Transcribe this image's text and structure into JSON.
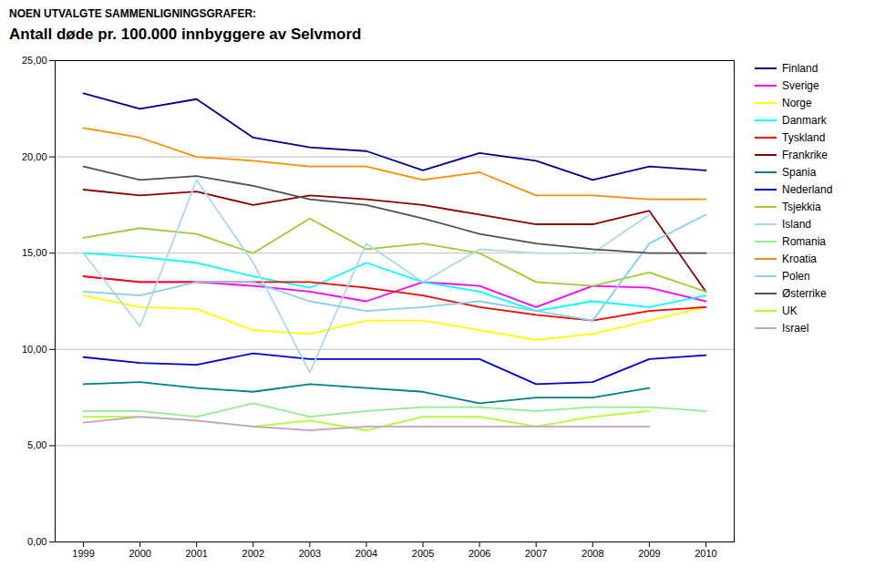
{
  "chart_data": {
    "type": "line",
    "title": "Antall døde pr. 100.000 innbyggere av Selvmord",
    "subtitle": "NOEN UTVALGTE SAMMENLIGNINGSGRAFER:",
    "x": [
      1999,
      2000,
      2001,
      2002,
      2003,
      2004,
      2005,
      2006,
      2007,
      2008,
      2009,
      2010
    ],
    "series": [
      {
        "name": "Finland",
        "color": "#00008B",
        "values": [
          23.3,
          22.5,
          23.0,
          21.0,
          20.5,
          20.3,
          19.3,
          20.2,
          19.8,
          18.8,
          19.5,
          19.3
        ]
      },
      {
        "name": "Sverige",
        "color": "#FF00FF",
        "values": [
          13.8,
          13.5,
          13.5,
          13.3,
          13.0,
          12.5,
          13.5,
          13.3,
          12.2,
          13.3,
          13.2,
          12.5
        ]
      },
      {
        "name": "Norge",
        "color": "#FFFF00",
        "values": [
          12.8,
          12.2,
          12.1,
          11.0,
          10.8,
          11.5,
          11.5,
          11.0,
          10.5,
          10.8,
          11.5,
          12.2
        ]
      },
      {
        "name": "Danmark",
        "color": "#00FFFF",
        "values": [
          15.0,
          14.8,
          14.5,
          13.8,
          13.2,
          14.5,
          13.5,
          13.0,
          12.0,
          12.5,
          12.2,
          12.8
        ]
      },
      {
        "name": "Tyskland",
        "color": "#FF0000",
        "values": [
          13.8,
          13.5,
          13.5,
          13.5,
          13.5,
          13.2,
          12.8,
          12.2,
          11.8,
          11.5,
          12.0,
          12.2
        ]
      },
      {
        "name": "Frankrike",
        "color": "#8B0000",
        "values": [
          18.3,
          18.0,
          18.2,
          17.5,
          18.0,
          17.8,
          17.5,
          17.0,
          16.5,
          16.5,
          17.2,
          13.0
        ]
      },
      {
        "name": "Spania",
        "color": "#008080",
        "values": [
          8.2,
          8.3,
          8.0,
          7.8,
          8.2,
          8.0,
          7.8,
          7.2,
          7.5,
          7.5,
          8.0,
          null
        ]
      },
      {
        "name": "Nederland",
        "color": "#0000CD",
        "values": [
          9.6,
          9.3,
          9.2,
          9.8,
          9.5,
          9.5,
          9.5,
          9.5,
          8.2,
          8.3,
          9.5,
          9.7
        ]
      },
      {
        "name": "Tsjekkia",
        "color": "#9ACD32",
        "values": [
          15.8,
          16.3,
          16.0,
          15.0,
          16.8,
          15.2,
          15.5,
          15.0,
          13.5,
          13.3,
          14.0,
          13.0
        ]
      },
      {
        "name": "Island",
        "color": "#ADD8E6",
        "values": [
          15.0,
          11.2,
          18.8,
          14.5,
          8.8,
          15.5,
          13.5,
          15.2,
          15.0,
          15.0,
          17.0,
          null
        ]
      },
      {
        "name": "Romania",
        "color": "#90EE90",
        "values": [
          6.8,
          6.8,
          6.5,
          7.2,
          6.5,
          6.8,
          7.0,
          7.0,
          6.8,
          7.0,
          7.0,
          6.8
        ]
      },
      {
        "name": "Kroatia",
        "color": "#FF8C00",
        "values": [
          21.5,
          21.0,
          20.0,
          19.8,
          19.5,
          19.5,
          18.8,
          19.2,
          18.0,
          18.0,
          17.8,
          17.8
        ]
      },
      {
        "name": "Polen",
        "color": "#87CEEB",
        "values": [
          13.0,
          12.8,
          13.5,
          13.5,
          12.5,
          12.0,
          12.2,
          12.5,
          12.0,
          11.5,
          15.5,
          17.0
        ]
      },
      {
        "name": "Østerrike",
        "color": "#505050",
        "values": [
          19.5,
          18.8,
          19.0,
          18.5,
          17.8,
          17.5,
          16.8,
          16.0,
          15.5,
          15.2,
          15.0,
          15.0
        ]
      },
      {
        "name": "UK",
        "color": "#ADFF2F",
        "values": [
          6.5,
          6.5,
          6.3,
          6.0,
          6.3,
          5.8,
          6.5,
          6.5,
          6.0,
          6.5,
          6.8,
          null
        ]
      },
      {
        "name": "Israel",
        "color": "#C8A0C8",
        "values": [
          6.2,
          6.5,
          6.3,
          6.0,
          5.8,
          6.0,
          6.0,
          6.0,
          6.0,
          6.0,
          6.0,
          null
        ]
      }
    ],
    "xlim": [
      1998.5,
      2010.5
    ],
    "xticks": [
      1999,
      2000,
      2001,
      2002,
      2003,
      2004,
      2005,
      2006,
      2007,
      2008,
      2009,
      2010
    ],
    "ylim": [
      0,
      25
    ],
    "yticks": [
      {
        "value": 0.0,
        "label": "0,00"
      },
      {
        "value": 5.0,
        "label": "5,00"
      },
      {
        "value": 10.0,
        "label": "10,00"
      },
      {
        "value": 15.0,
        "label": "15,00"
      },
      {
        "value": 20.0,
        "label": "20,00"
      },
      {
        "value": 25.0,
        "label": "25,00"
      }
    ],
    "grid": "y",
    "legend": "right"
  }
}
